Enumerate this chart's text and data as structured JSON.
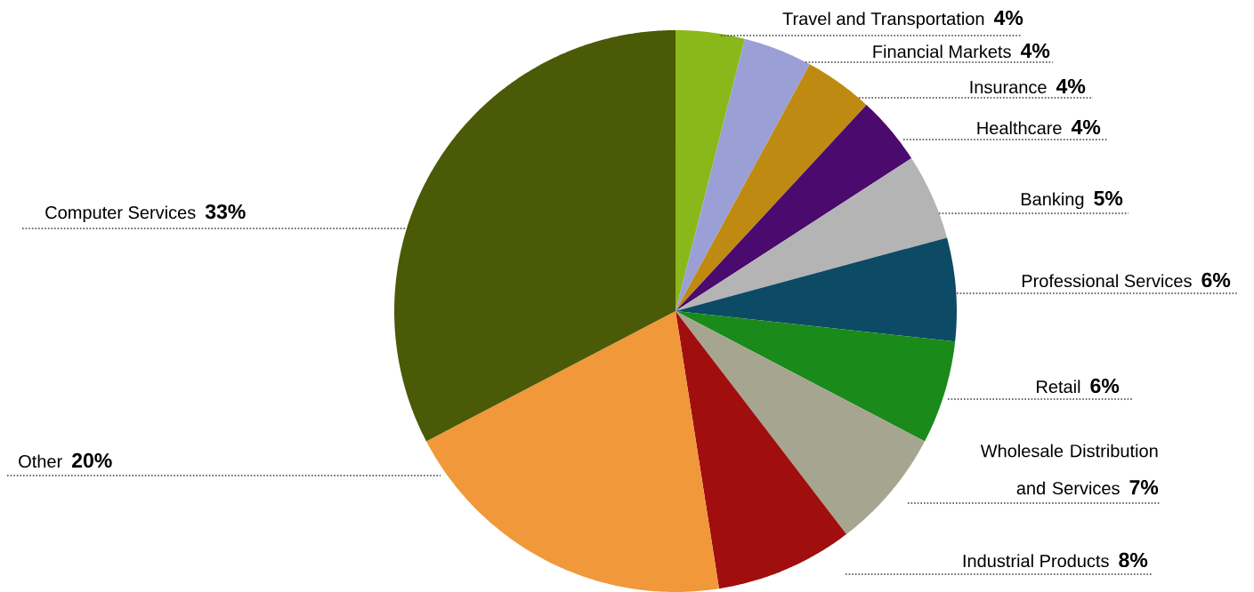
{
  "chart_data": {
    "type": "pie",
    "categories": [
      "Travel and Transportation",
      "Financial Markets",
      "Insurance",
      "Healthcare",
      "Banking",
      "Professional Services",
      "Retail",
      "Wholesale Distribution and Services",
      "Industrial Products",
      "Other",
      "Computer Services"
    ],
    "values": [
      4,
      4,
      4,
      4,
      5,
      6,
      6,
      7,
      8,
      20,
      33
    ],
    "value_labels": [
      "4%",
      "4%",
      "4%",
      "4%",
      "5%",
      "6%",
      "6%",
      "7%",
      "8%",
      "20%",
      "33%"
    ],
    "colors": [
      "#8ab81a",
      "#9aa0d6",
      "#bf8a12",
      "#4b0a6e",
      "#b4b4b4",
      "#0d4a66",
      "#1a8a1a",
      "#a6a690",
      "#a00e0e",
      "#f0983a",
      "#4a5a06"
    ]
  }
}
